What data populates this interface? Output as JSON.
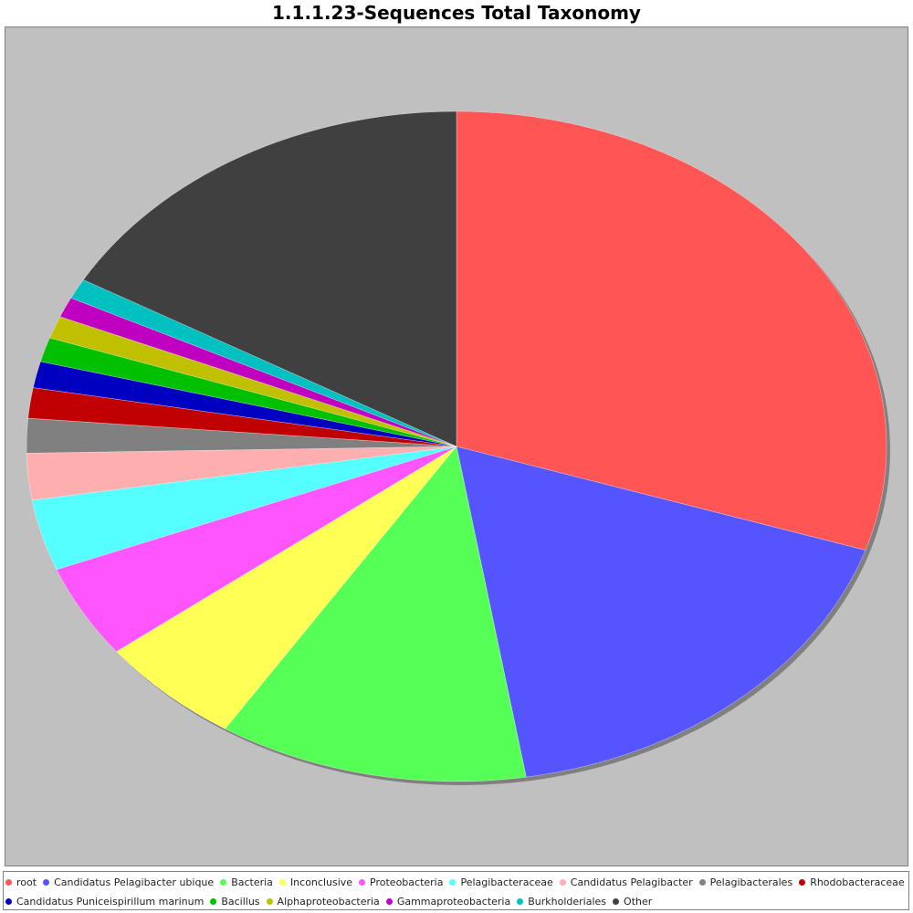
{
  "chart_data": {
    "type": "pie",
    "title": "1.1.1.23-Sequences Total Taxonomy",
    "slices": [
      {
        "label": "root",
        "value": 30.7,
        "color": "#ff5555"
      },
      {
        "label": "Candidatus Pelagibacter ubique",
        "value": 17.8,
        "color": "#5555ff"
      },
      {
        "label": "Bacteria",
        "value": 11.9,
        "color": "#55ff55"
      },
      {
        "label": "Inconclusive",
        "value": 5.6,
        "color": "#ffff55"
      },
      {
        "label": "Proteobacteria",
        "value": 4.6,
        "color": "#ff55ff"
      },
      {
        "label": "Pelagibacteraceae",
        "value": 3.5,
        "color": "#55ffff"
      },
      {
        "label": "Candidatus Pelagibacter",
        "value": 2.3,
        "color": "#ffafaf"
      },
      {
        "label": "Pelagibacterales",
        "value": 1.7,
        "color": "#808080"
      },
      {
        "label": "Rhodobacteraceae",
        "value": 1.5,
        "color": "#c00000"
      },
      {
        "label": "Candidatus Puniceispirillum marinum",
        "value": 1.3,
        "color": "#0000c0"
      },
      {
        "label": "Bacillus",
        "value": 1.2,
        "color": "#00c000"
      },
      {
        "label": "Alphaproteobacteria",
        "value": 1.1,
        "color": "#c0c000"
      },
      {
        "label": "Gammaproteobacteria",
        "value": 1.0,
        "color": "#c000c0"
      },
      {
        "label": "Burkholderiales",
        "value": 1.0,
        "color": "#00c0c0"
      },
      {
        "label": "Other",
        "value": 17.1,
        "color": "#404040"
      }
    ],
    "legend_position": "bottom"
  }
}
